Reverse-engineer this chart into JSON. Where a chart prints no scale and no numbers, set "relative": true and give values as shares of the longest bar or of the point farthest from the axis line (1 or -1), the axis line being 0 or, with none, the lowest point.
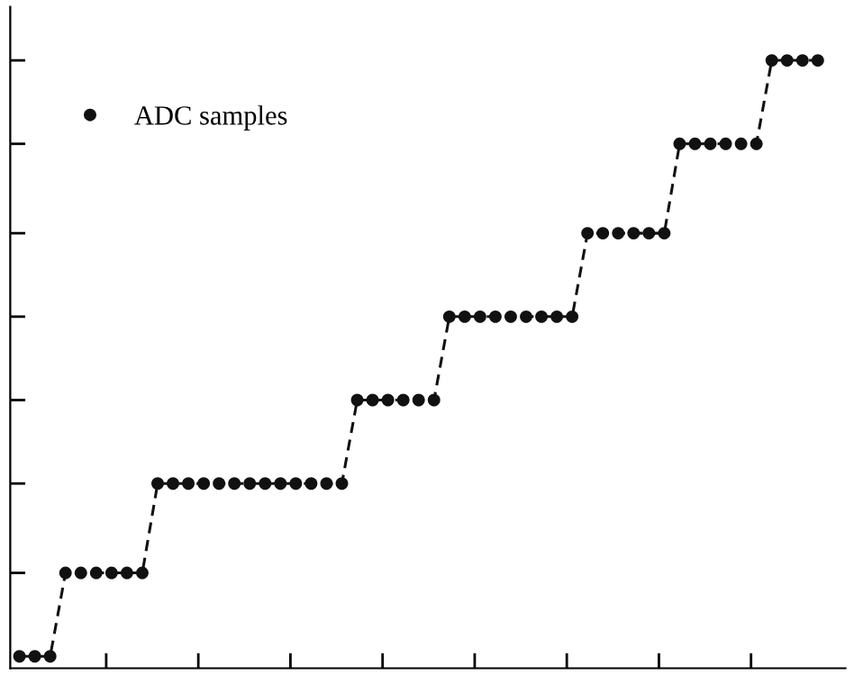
{
  "chart_data": {
    "type": "line",
    "relative": true,
    "legend": "top left",
    "marker": "circle",
    "line_style": "dashed",
    "categories": [
      null,
      null,
      null,
      null,
      null,
      null,
      null,
      null,
      null,
      null,
      null,
      null,
      null,
      null,
      null,
      null,
      null,
      null,
      null,
      null,
      null,
      null,
      null,
      null,
      null,
      null,
      null,
      null,
      null,
      null,
      null,
      null,
      null,
      null,
      null,
      null,
      null,
      null,
      null,
      null,
      null,
      null,
      null,
      null,
      null,
      null,
      null,
      null,
      null,
      null,
      null,
      null,
      null
    ],
    "series": [
      {
        "name": "ADC samples",
        "color": "#111111",
        "values": [
          0,
          0,
          0,
          0.14,
          0.14,
          0.14,
          0.14,
          0.14,
          0.14,
          0.29,
          0.29,
          0.29,
          0.29,
          0.29,
          0.29,
          0.29,
          0.29,
          0.29,
          0.29,
          0.29,
          0.29,
          0.29,
          0.43,
          0.43,
          0.43,
          0.43,
          0.43,
          0.43,
          0.57,
          0.57,
          0.57,
          0.57,
          0.57,
          0.57,
          0.57,
          0.57,
          0.57,
          0.71,
          0.71,
          0.71,
          0.71,
          0.71,
          0.71,
          0.86,
          0.86,
          0.86,
          0.86,
          0.86,
          0.86,
          1,
          1,
          1,
          1
        ]
      }
    ]
  }
}
